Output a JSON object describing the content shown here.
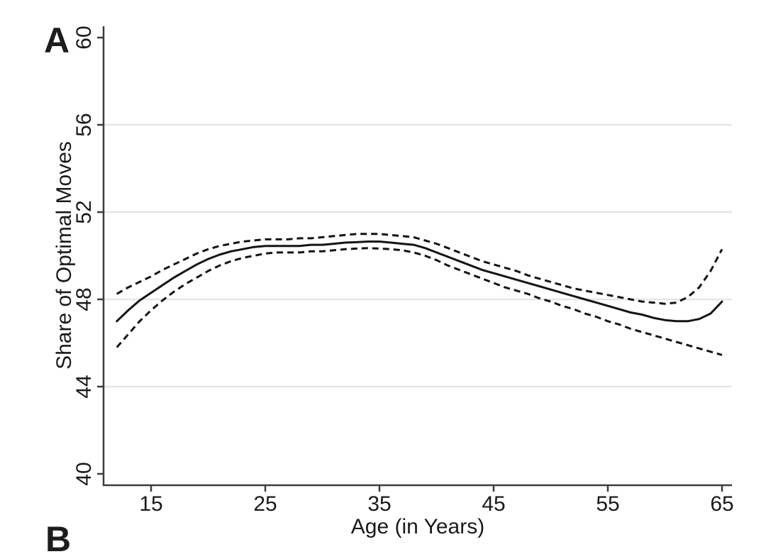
{
  "panel": {
    "label_a": "A",
    "label_b": "B"
  },
  "colors": {
    "line": "#141414",
    "axis": "#3c3c3c",
    "grid": "#e6e6e6",
    "text": "#1a1a1a",
    "background": "#ffffff"
  },
  "chart_data": {
    "type": "line",
    "title": "",
    "xlabel": "Age (in Years)",
    "ylabel": "Share of Optimal Moves",
    "x_ticks": [
      15,
      25,
      35,
      45,
      55,
      65
    ],
    "y_ticks": [
      40,
      44,
      48,
      52,
      56,
      60
    ],
    "grid_y": [
      44,
      48,
      52,
      56
    ],
    "xlim": [
      10.8,
      65.9
    ],
    "ylim": [
      39.5,
      60.5
    ],
    "grid": "horizontal gridlines only",
    "legend": "none",
    "x": [
      12,
      13,
      14,
      15,
      16,
      17,
      18,
      19,
      20,
      21,
      22,
      23,
      24,
      25,
      26,
      27,
      28,
      29,
      30,
      31,
      32,
      33,
      34,
      35,
      36,
      37,
      38,
      39,
      40,
      41,
      42,
      43,
      44,
      45,
      46,
      47,
      48,
      49,
      50,
      51,
      52,
      53,
      54,
      55,
      56,
      57,
      58,
      59,
      60,
      61,
      62,
      63,
      64,
      65
    ],
    "series": [
      {
        "name": "fit",
        "style": "solid",
        "values": [
          47.0,
          47.5,
          47.95,
          48.3,
          48.65,
          49.0,
          49.3,
          49.6,
          49.85,
          50.05,
          50.2,
          50.3,
          50.4,
          50.45,
          50.45,
          50.45,
          50.45,
          50.5,
          50.5,
          50.55,
          50.6,
          50.62,
          50.65,
          50.65,
          50.6,
          50.55,
          50.5,
          50.35,
          50.15,
          49.95,
          49.75,
          49.55,
          49.35,
          49.2,
          49.05,
          48.9,
          48.75,
          48.6,
          48.45,
          48.3,
          48.15,
          48.0,
          47.85,
          47.7,
          47.55,
          47.4,
          47.3,
          47.15,
          47.05,
          47.0,
          47.0,
          47.1,
          47.35,
          47.9
        ]
      },
      {
        "name": "ci-upper",
        "style": "dashed",
        "values": [
          48.25,
          48.55,
          48.8,
          49.05,
          49.35,
          49.6,
          49.85,
          50.1,
          50.3,
          50.45,
          50.55,
          50.65,
          50.7,
          50.75,
          50.75,
          50.75,
          50.8,
          50.8,
          50.85,
          50.9,
          50.95,
          51.0,
          51.0,
          51.0,
          50.95,
          50.9,
          50.85,
          50.7,
          50.55,
          50.35,
          50.15,
          49.95,
          49.75,
          49.6,
          49.45,
          49.3,
          49.1,
          48.95,
          48.8,
          48.65,
          48.5,
          48.4,
          48.3,
          48.2,
          48.1,
          48.0,
          47.9,
          47.85,
          47.8,
          47.85,
          48.1,
          48.55,
          49.3,
          50.3
        ]
      },
      {
        "name": "ci-lower",
        "style": "dashed",
        "values": [
          45.8,
          46.4,
          47.0,
          47.5,
          47.95,
          48.35,
          48.7,
          49.0,
          49.3,
          49.55,
          49.75,
          49.9,
          50.0,
          50.1,
          50.15,
          50.15,
          50.15,
          50.2,
          50.2,
          50.25,
          50.3,
          50.33,
          50.35,
          50.33,
          50.3,
          50.25,
          50.15,
          50.0,
          49.8,
          49.55,
          49.35,
          49.15,
          48.95,
          48.75,
          48.55,
          48.4,
          48.25,
          48.05,
          47.9,
          47.7,
          47.55,
          47.35,
          47.2,
          47.0,
          46.85,
          46.65,
          46.5,
          46.35,
          46.2,
          46.05,
          45.9,
          45.75,
          45.6,
          45.45
        ]
      }
    ]
  }
}
